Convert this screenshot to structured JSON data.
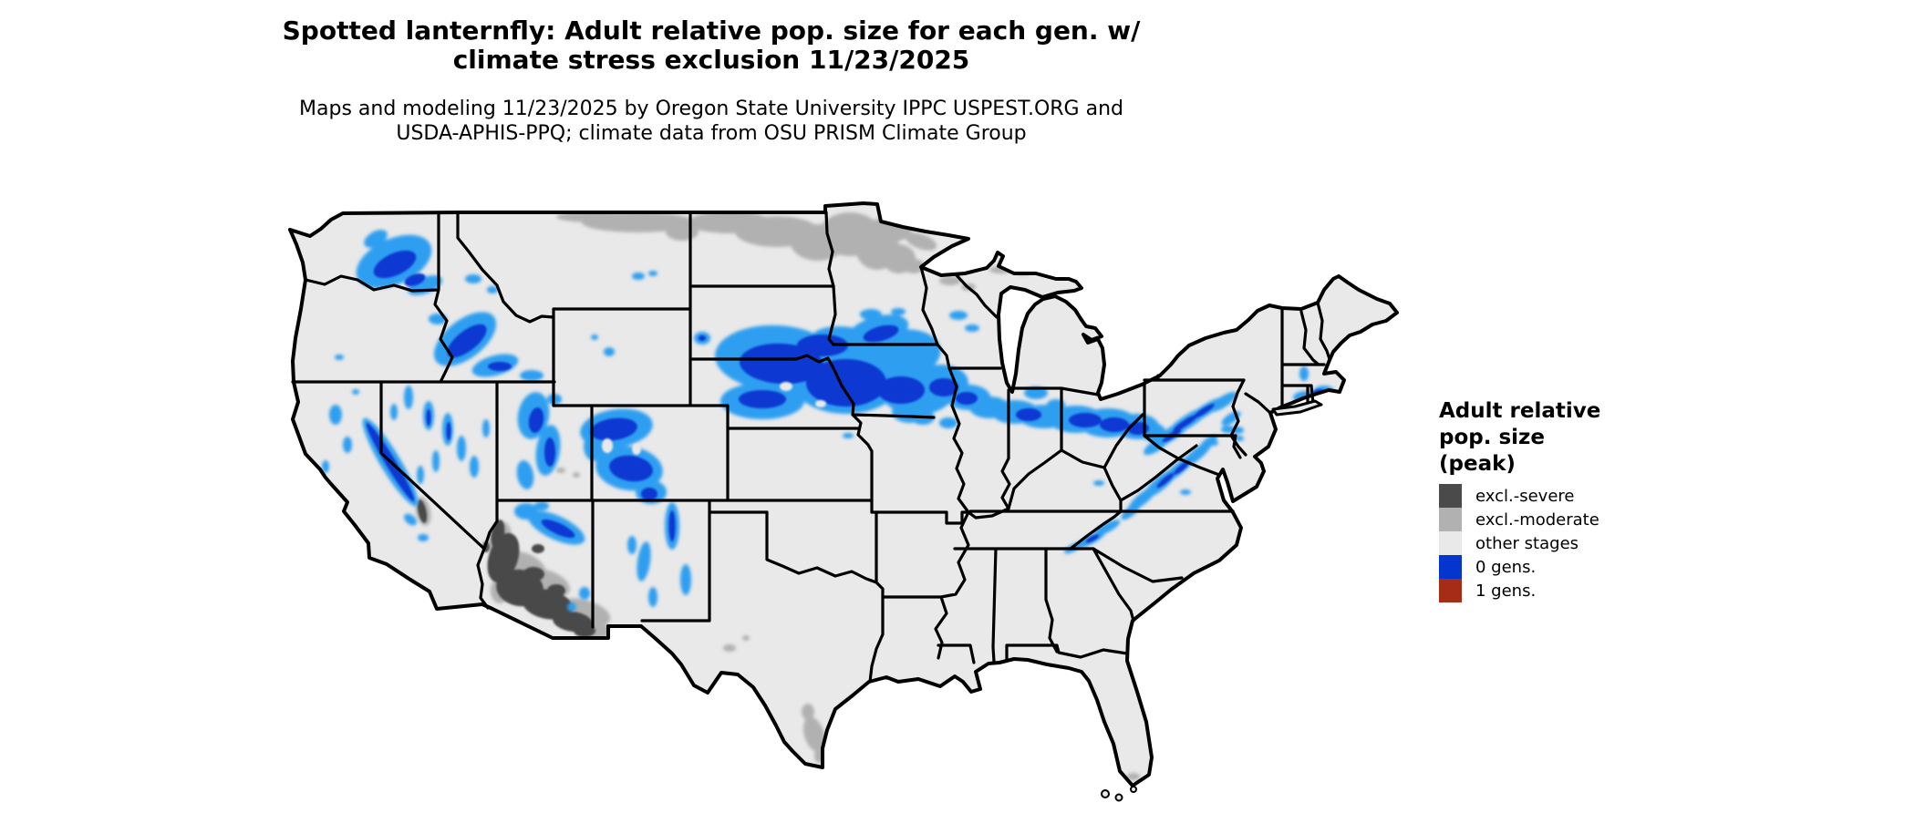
{
  "header": {
    "title_line1": "Spotted lanternfly: Adult relative pop. size for each gen. w/",
    "title_line2": "climate stress exclusion 11/23/2025",
    "subtitle_line1": "Maps and modeling 11/23/2025 by Oregon State University IPPC USPEST.ORG and",
    "subtitle_line2": "USDA-APHIS-PPQ; climate data from OSU PRISM Climate Group"
  },
  "legend": {
    "title_line1": "Adult relative",
    "title_line2": "pop. size",
    "title_line3": "(peak)",
    "items": [
      {
        "label": "excl.-severe",
        "color": "#4a4a4a"
      },
      {
        "label": "excl.-moderate",
        "color": "#b1b1b1"
      },
      {
        "label": "other stages",
        "color": "#e9e9e9"
      },
      {
        "label": "0 gens.",
        "color": "#0435cf"
      },
      {
        "label": "1 gens.",
        "color": "#a62c18"
      }
    ]
  },
  "map": {
    "colors": {
      "background": "#ffffff",
      "land_other_stages": "#e9e9e9",
      "state_border": "#000000",
      "excl_severe": "#4a4a4a",
      "excl_moderate": "#b1b1b1",
      "gen0_core": "#0837d1",
      "gen0_fringe": "#2d9ff0",
      "gen1": "#a62c18"
    }
  }
}
